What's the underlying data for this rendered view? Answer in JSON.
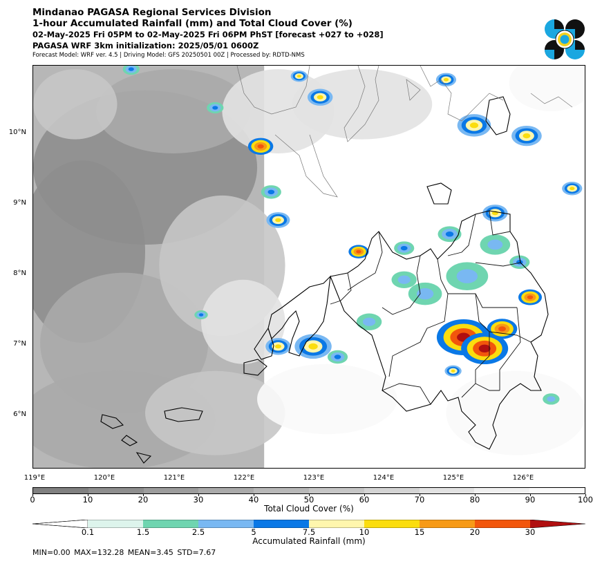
{
  "header": {
    "line1": "Mindanao PAGASA Regional Services Division",
    "line2": "1-hour Accumulated Rainfall (mm) and Total Cloud Cover (%)",
    "line3": "02-May-2025 Fri 05PM to 02-May-2025 Fri 06PM PhST [forecast +027 to +028]",
    "line4": "PAGASA WRF 3km initialization: 2025/05/01 0600Z",
    "line5": "Forecast Model: WRF ver. 4.5 | Driving Model: GFS 20250501 00Z | Processed by: RDTD-NMS"
  },
  "logo": {
    "icon": "pagasa-logo-icon",
    "colors": [
      "#1aa7e0",
      "#111111",
      "#f4d21f"
    ]
  },
  "map": {
    "lon_range": [
      119.0,
      126.9
    ],
    "lat_range": [
      5.2,
      10.95
    ],
    "x_ticks": [
      "119°E",
      "120°E",
      "121°E",
      "122°E",
      "123°E",
      "124°E",
      "125°E",
      "126°E"
    ],
    "y_ticks": [
      "10°N",
      "9°N",
      "8°N",
      "7°N",
      "6°N"
    ],
    "rain_cells": [
      {
        "lon": 125.15,
        "lat": 7.08,
        "r": 0.32,
        "level": 5
      },
      {
        "lon": 125.45,
        "lat": 6.92,
        "r": 0.28,
        "level": 5
      },
      {
        "lon": 125.7,
        "lat": 7.2,
        "r": 0.18,
        "level": 4
      },
      {
        "lon": 126.1,
        "lat": 7.65,
        "r": 0.14,
        "level": 4
      },
      {
        "lon": 123.65,
        "lat": 8.3,
        "r": 0.12,
        "level": 4
      },
      {
        "lon": 122.25,
        "lat": 9.8,
        "r": 0.15,
        "level": 4
      },
      {
        "lon": 123.0,
        "lat": 6.95,
        "r": 0.22,
        "level": 3
      },
      {
        "lon": 122.5,
        "lat": 6.95,
        "r": 0.15,
        "level": 3
      },
      {
        "lon": 122.5,
        "lat": 8.75,
        "r": 0.14,
        "level": 3
      },
      {
        "lon": 125.6,
        "lat": 8.85,
        "r": 0.15,
        "level": 3
      },
      {
        "lon": 125.3,
        "lat": 10.1,
        "r": 0.2,
        "level": 3
      },
      {
        "lon": 124.9,
        "lat": 10.75,
        "r": 0.12,
        "level": 3
      },
      {
        "lon": 123.1,
        "lat": 10.5,
        "r": 0.15,
        "level": 3
      },
      {
        "lon": 126.05,
        "lat": 9.95,
        "r": 0.18,
        "level": 3
      },
      {
        "lon": 125.0,
        "lat": 6.6,
        "r": 0.1,
        "level": 3
      },
      {
        "lon": 126.7,
        "lat": 9.2,
        "r": 0.12,
        "level": 3
      },
      {
        "lon": 122.8,
        "lat": 10.8,
        "r": 0.1,
        "level": 3
      },
      {
        "lon": 122.4,
        "lat": 9.15,
        "r": 0.12,
        "level": 2
      },
      {
        "lon": 120.4,
        "lat": 10.9,
        "r": 0.1,
        "level": 2
      },
      {
        "lon": 124.3,
        "lat": 8.35,
        "r": 0.12,
        "level": 2
      },
      {
        "lon": 124.95,
        "lat": 8.55,
        "r": 0.14,
        "level": 2
      },
      {
        "lon": 125.95,
        "lat": 8.15,
        "r": 0.12,
        "level": 2
      },
      {
        "lon": 123.35,
        "lat": 6.8,
        "r": 0.12,
        "level": 2
      },
      {
        "lon": 121.4,
        "lat": 7.4,
        "r": 0.08,
        "level": 2
      },
      {
        "lon": 121.6,
        "lat": 10.35,
        "r": 0.1,
        "level": 2
      },
      {
        "lon": 124.3,
        "lat": 7.9,
        "r": 0.15,
        "level": 1
      },
      {
        "lon": 125.2,
        "lat": 7.95,
        "r": 0.25,
        "level": 1
      },
      {
        "lon": 124.6,
        "lat": 7.7,
        "r": 0.2,
        "level": 1
      },
      {
        "lon": 125.6,
        "lat": 8.4,
        "r": 0.18,
        "level": 1
      },
      {
        "lon": 123.8,
        "lat": 7.3,
        "r": 0.15,
        "level": 1
      },
      {
        "lon": 126.4,
        "lat": 6.2,
        "r": 0.1,
        "level": 1
      }
    ],
    "cloud_patches": [
      {
        "lon": 120.6,
        "lat": 9.5,
        "rx": 1.6,
        "ry": 1.1,
        "level": 1
      },
      {
        "lon": 119.7,
        "lat": 8.3,
        "rx": 0.9,
        "ry": 1.3,
        "level": 1
      },
      {
        "lon": 120.3,
        "lat": 7.0,
        "rx": 1.2,
        "ry": 1.0,
        "level": 2
      },
      {
        "lon": 121.0,
        "lat": 10.3,
        "rx": 1.1,
        "ry": 0.6,
        "level": 2
      },
      {
        "lon": 120.2,
        "lat": 5.9,
        "rx": 1.4,
        "ry": 0.7,
        "level": 2
      },
      {
        "lon": 121.7,
        "lat": 8.1,
        "rx": 0.9,
        "ry": 1.0,
        "level": 3
      },
      {
        "lon": 119.6,
        "lat": 10.4,
        "rx": 0.6,
        "ry": 0.5,
        "level": 3
      },
      {
        "lon": 121.6,
        "lat": 6.0,
        "rx": 1.0,
        "ry": 0.6,
        "level": 3
      },
      {
        "lon": 122.5,
        "lat": 10.3,
        "rx": 0.8,
        "ry": 0.6,
        "level": 4
      },
      {
        "lon": 123.7,
        "lat": 10.4,
        "rx": 1.0,
        "ry": 0.5,
        "level": 4
      },
      {
        "lon": 122.0,
        "lat": 7.3,
        "rx": 0.6,
        "ry": 0.6,
        "level": 4
      },
      {
        "lon": 125.9,
        "lat": 6.0,
        "rx": 1.0,
        "ry": 0.6,
        "level": 5
      },
      {
        "lon": 123.2,
        "lat": 6.2,
        "rx": 1.0,
        "ry": 0.5,
        "level": 5
      },
      {
        "lon": 126.4,
        "lat": 10.7,
        "rx": 0.6,
        "ry": 0.4,
        "level": 5
      }
    ]
  },
  "cloud_colorbar": {
    "title": "Total Cloud Cover (%)",
    "ticks": [
      "0",
      "10",
      "20",
      "30",
      "40",
      "50",
      "60",
      "70",
      "80",
      "90",
      "100"
    ],
    "colors": [
      "#808080",
      "#8e8e8e",
      "#9c9c9c",
      "#aaaaaa",
      "#b8b8b8",
      "#c6c6c6",
      "#d4d4d4",
      "#e2e2e2",
      "#f0f0f0",
      "#fafafa"
    ]
  },
  "rain_colorbar": {
    "title": "Accumulated Rainfall (mm)",
    "ticks": [
      "0.1",
      "1.5",
      "2.5",
      "5",
      "7.5",
      "10",
      "15",
      "20",
      "30"
    ],
    "colors": [
      "#ddf4ec",
      "#6fd5b0",
      "#79b8f2",
      "#0a78e6",
      "#fff6ad",
      "#fbdd0e",
      "#f79a17",
      "#f2560c",
      "#b00f10"
    ]
  },
  "stats": "MIN=0.00   MAX=132.28   MEAN=3.45   STD=7.67"
}
